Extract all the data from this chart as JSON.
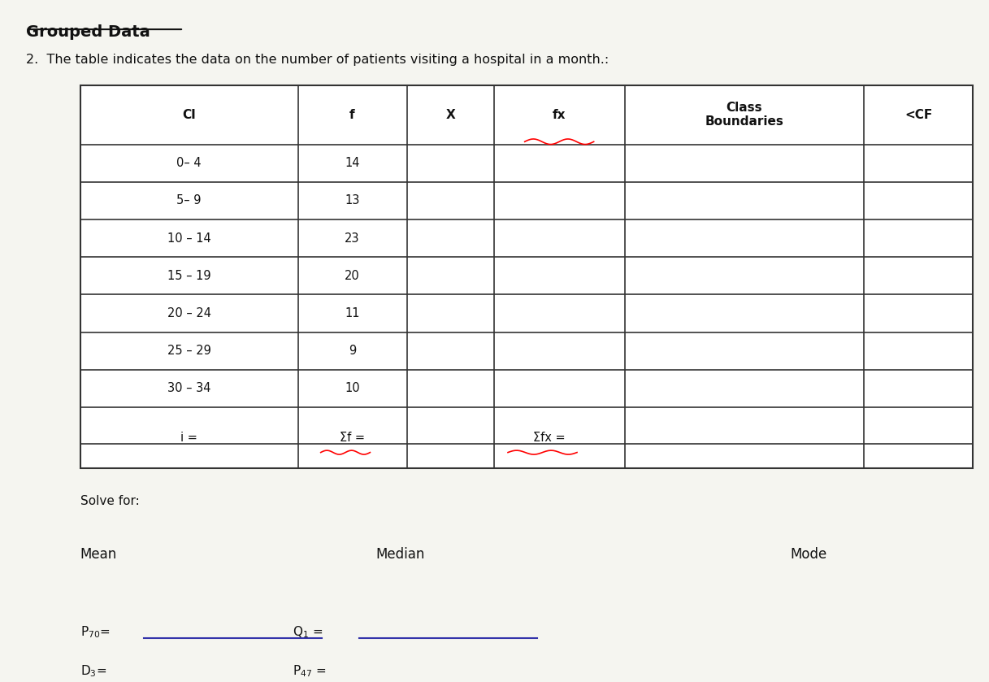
{
  "title": "Grouped Data",
  "subtitle": "2.  The table indicates the data on the number of patients visiting a hospital in a month.:",
  "col_headers": [
    "CI",
    "f",
    "X",
    "fx",
    "Class\nBoundaries",
    "<CF"
  ],
  "rows": [
    [
      "0– 4",
      "14",
      "",
      "",
      "",
      ""
    ],
    [
      "5– 9",
      "13",
      "",
      "",
      "",
      ""
    ],
    [
      "10 – 14",
      "23",
      "",
      "",
      "",
      ""
    ],
    [
      "15 – 19",
      "20",
      "",
      "",
      "",
      ""
    ],
    [
      "20 – 24",
      "11",
      "",
      "",
      "",
      ""
    ],
    [
      "25 – 29",
      "9",
      "",
      "",
      "",
      ""
    ],
    [
      "30 – 34",
      "10",
      "",
      "",
      "",
      ""
    ]
  ],
  "footer_row": [
    "i =",
    "Σf =",
    "",
    "Σfx =",
    "",
    ""
  ],
  "solve_label": "Solve for:",
  "mean_label": "Mean",
  "median_label": "Median",
  "mode_label": "Mode",
  "bg_color": "#f5f5f0",
  "table_bg": "#ffffff",
  "border_color": "#333333",
  "text_color": "#111111",
  "red_color": "#cc0000",
  "blue_color": "#3333aa"
}
